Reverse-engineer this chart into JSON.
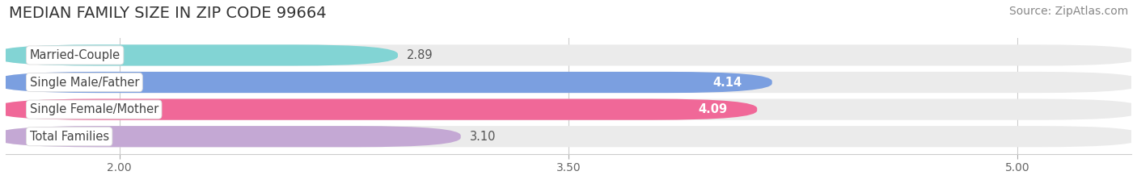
{
  "title": "MEDIAN FAMILY SIZE IN ZIP CODE 99664",
  "source": "Source: ZipAtlas.com",
  "categories": [
    "Married-Couple",
    "Single Male/Father",
    "Single Female/Mother",
    "Total Families"
  ],
  "values": [
    2.89,
    4.14,
    4.09,
    3.1
  ],
  "bar_colors": [
    "#82D4D4",
    "#7B9FE0",
    "#F06898",
    "#C4A8D4"
  ],
  "xlim_left": 1.62,
  "xlim_right": 5.38,
  "xstart": 1.62,
  "xticks": [
    2.0,
    3.5,
    5.0
  ],
  "xtick_labels": [
    "2.00",
    "3.50",
    "5.00"
  ],
  "background_color": "#FFFFFF",
  "bar_bg_color": "#EBEBEB",
  "title_fontsize": 14,
  "source_fontsize": 10,
  "label_fontsize": 10.5,
  "value_fontsize": 10.5,
  "tick_fontsize": 10
}
